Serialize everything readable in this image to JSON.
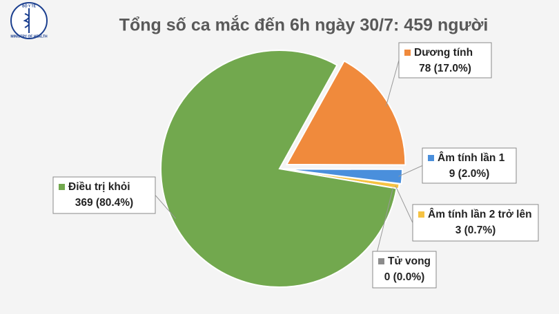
{
  "logo": {
    "top": "BỘ Y TẾ",
    "bottom": "MINISTRY OF HEALTH"
  },
  "chart_data": {
    "type": "pie",
    "title": "Tổng số ca mắc đến 6h ngày 30/7: 459 người",
    "categories": [
      "Dương tính",
      "Âm tính lần 1",
      "Âm tính lần 2 trở lên",
      "Tử vong",
      "Điều trị khỏi"
    ],
    "values": [
      78,
      9,
      3,
      0,
      369
    ],
    "value_labels": [
      "78 (17.0%)",
      "9 (2.0%)",
      "3 (0.7%)",
      "0 (0.0%)",
      "369 (80.4%)"
    ],
    "colors": [
      "#f08a3c",
      "#4a8fdc",
      "#f6c343",
      "#8c8c8c",
      "#72a84e"
    ]
  }
}
